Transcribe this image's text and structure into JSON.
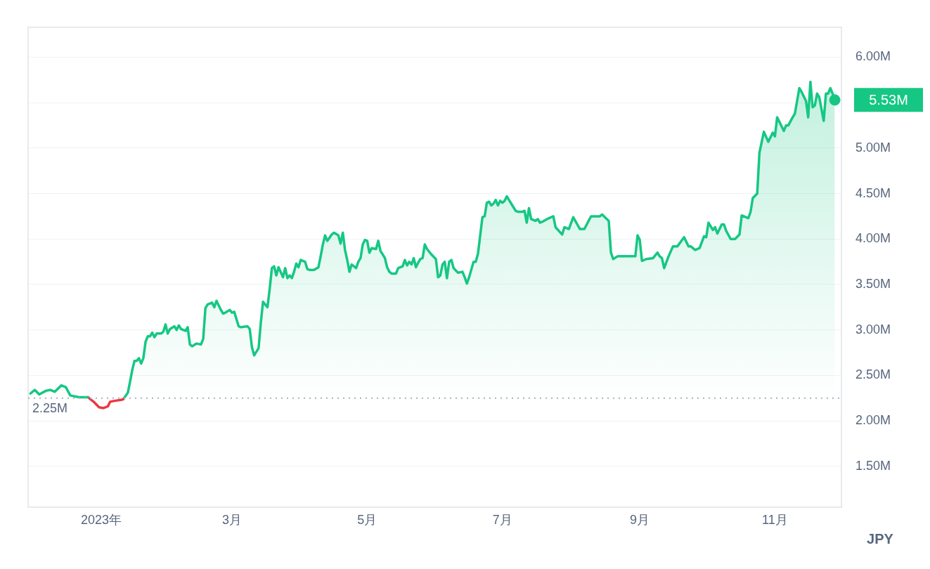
{
  "chart_data": {
    "type": "area",
    "xlim": [
      "2022-11-29",
      "2023-12-01"
    ],
    "ylim": [
      1.05,
      6.33
    ],
    "xticks": [
      {
        "value": "2023-01-01",
        "label": "2023年"
      },
      {
        "value": "2023-03-01",
        "label": "3月"
      },
      {
        "value": "2023-05-01",
        "label": "5月"
      },
      {
        "value": "2023-07-01",
        "label": "7月"
      },
      {
        "value": "2023-09-01",
        "label": "9月"
      },
      {
        "value": "2023-11-01",
        "label": "11月"
      }
    ],
    "yticks": [
      {
        "value": 1.5,
        "label": "1.50M"
      },
      {
        "value": 2,
        "label": "2.00M"
      },
      {
        "value": 2.5,
        "label": "2.50M"
      },
      {
        "value": 3,
        "label": "3.00M"
      },
      {
        "value": 3.5,
        "label": "3.50M"
      },
      {
        "value": 4,
        "label": "4.00M"
      },
      {
        "value": 4.5,
        "label": "4.50M"
      },
      {
        "value": 5,
        "label": "5.00M"
      },
      {
        "value": 5.5,
        "label": null
      },
      {
        "value": 6,
        "label": "6.00M"
      }
    ],
    "grid": "y",
    "legend": false,
    "marker": "none",
    "line_style": "solid",
    "ref_lines": [
      {
        "axis": "y",
        "value": 2.25,
        "label": "2.25M",
        "color": "#a6b0c3",
        "line_style": "dotted"
      }
    ],
    "annotations": [
      {
        "text": "5.53M",
        "x": "2023-11-28",
        "y": 5.53
      },
      "JPY"
    ],
    "series": [
      {
        "color": "#16c784",
        "x": [
          "2022-11-30",
          "2022-12-02",
          "2022-12-04",
          "2022-12-07",
          "2022-12-09",
          "2022-12-11",
          "2022-12-14",
          "2022-12-16",
          "2022-12-18",
          "2022-12-22",
          "2022-12-26"
        ],
        "values": [
          2.3,
          2.34,
          2.29,
          2.33,
          2.34,
          2.32,
          2.39,
          2.37,
          2.28,
          2.26,
          2.26
        ]
      },
      {
        "color": "#ea3943",
        "x": [
          "2022-12-26",
          "2022-12-27",
          "2022-12-29",
          "2022-12-31",
          "2023-01-02",
          "2023-01-04",
          "2023-01-05",
          "2023-01-07",
          "2023-01-10",
          "2023-01-11"
        ],
        "values": [
          2.26,
          2.24,
          2.2,
          2.15,
          2.14,
          2.16,
          2.21,
          2.22,
          2.23,
          2.24
        ]
      },
      {
        "color": "#16c784",
        "x": [
          "2023-01-11",
          "2023-01-13",
          "2023-01-14",
          "2023-01-15",
          "2023-01-16",
          "2023-01-17",
          "2023-01-18",
          "2023-01-19",
          "2023-01-20",
          "2023-01-21",
          "2023-01-22",
          "2023-01-23",
          "2023-01-24",
          "2023-01-25",
          "2023-01-26",
          "2023-01-28",
          "2023-01-29",
          "2023-01-30",
          "2023-01-31",
          "2023-02-01",
          "2023-02-03",
          "2023-02-04",
          "2023-02-05",
          "2023-02-06",
          "2023-02-08",
          "2023-02-09",
          "2023-02-10",
          "2023-02-11",
          "2023-02-13",
          "2023-02-15",
          "2023-02-16",
          "2023-02-17",
          "2023-02-18",
          "2023-02-20",
          "2023-02-21",
          "2023-02-22",
          "2023-02-23",
          "2023-02-24",
          "2023-02-25",
          "2023-02-26",
          "2023-02-28",
          "2023-03-01",
          "2023-03-02",
          "2023-03-04",
          "2023-03-05",
          "2023-03-08",
          "2023-03-09",
          "2023-03-10",
          "2023-03-11",
          "2023-03-13",
          "2023-03-14",
          "2023-03-15",
          "2023-03-17",
          "2023-03-18",
          "2023-03-19",
          "2023-03-20",
          "2023-03-21",
          "2023-03-22",
          "2023-03-24",
          "2023-03-25",
          "2023-03-26",
          "2023-03-27",
          "2023-03-28",
          "2023-03-29",
          "2023-03-30",
          "2023-03-31",
          "2023-04-01",
          "2023-04-03",
          "2023-04-04",
          "2023-04-05",
          "2023-04-07",
          "2023-04-09",
          "2023-04-10",
          "2023-04-11",
          "2023-04-12",
          "2023-04-13",
          "2023-04-15",
          "2023-04-16",
          "2023-04-18",
          "2023-04-19",
          "2023-04-20",
          "2023-04-21",
          "2023-04-22",
          "2023-04-23",
          "2023-04-24",
          "2023-04-26",
          "2023-04-27",
          "2023-04-28",
          "2023-04-29",
          "2023-04-30",
          "2023-05-01",
          "2023-05-02",
          "2023-05-03",
          "2023-05-05",
          "2023-05-06",
          "2023-05-07",
          "2023-05-09",
          "2023-05-10",
          "2023-05-11",
          "2023-05-12",
          "2023-05-14",
          "2023-05-15",
          "2023-05-17",
          "2023-05-18",
          "2023-05-19",
          "2023-05-20",
          "2023-05-21",
          "2023-05-22",
          "2023-05-23",
          "2023-05-24",
          "2023-05-25",
          "2023-05-26",
          "2023-05-27",
          "2023-05-28",
          "2023-05-30",
          "2023-06-01",
          "2023-06-02",
          "2023-06-03",
          "2023-06-04",
          "2023-06-05",
          "2023-06-06",
          "2023-06-07",
          "2023-06-08",
          "2023-06-09",
          "2023-06-11",
          "2023-06-13",
          "2023-06-14",
          "2023-06-15",
          "2023-06-16",
          "2023-06-18",
          "2023-06-19",
          "2023-06-20",
          "2023-06-22",
          "2023-06-23",
          "2023-06-24",
          "2023-06-25",
          "2023-06-26",
          "2023-06-27",
          "2023-06-28",
          "2023-06-29",
          "2023-06-30",
          "2023-07-01",
          "2023-07-02",
          "2023-07-03",
          "2023-07-04",
          "2023-07-06",
          "2023-07-07",
          "2023-07-08",
          "2023-07-10",
          "2023-07-11",
          "2023-07-12",
          "2023-07-13",
          "2023-07-14",
          "2023-07-16",
          "2023-07-17",
          "2023-07-18",
          "2023-07-19",
          "2023-07-22",
          "2023-07-24",
          "2023-07-25",
          "2023-07-28",
          "2023-07-29",
          "2023-07-31",
          "2023-08-02",
          "2023-08-05",
          "2023-08-07",
          "2023-08-10",
          "2023-08-14",
          "2023-08-15",
          "2023-08-18",
          "2023-08-19",
          "2023-08-20",
          "2023-08-22",
          "2023-08-24",
          "2023-08-28",
          "2023-08-30",
          "2023-08-31",
          "2023-09-01",
          "2023-09-02",
          "2023-09-04",
          "2023-09-07",
          "2023-09-09",
          "2023-09-10",
          "2023-09-11",
          "2023-09-12",
          "2023-09-14",
          "2023-09-16",
          "2023-09-18",
          "2023-09-21",
          "2023-09-23",
          "2023-09-24",
          "2023-09-26",
          "2023-09-28",
          "2023-09-30",
          "2023-10-01",
          "2023-10-02",
          "2023-10-04",
          "2023-10-05",
          "2023-10-06",
          "2023-10-08",
          "2023-10-09",
          "2023-10-10",
          "2023-10-12",
          "2023-10-14",
          "2023-10-16",
          "2023-10-17",
          "2023-10-20",
          "2023-10-21",
          "2023-10-22",
          "2023-10-24",
          "2023-10-25",
          "2023-10-27",
          "2023-10-29",
          "2023-10-31",
          "2023-11-01",
          "2023-11-02",
          "2023-11-05",
          "2023-11-06",
          "2023-11-07",
          "2023-11-09",
          "2023-11-10",
          "2023-11-12",
          "2023-11-13",
          "2023-11-15",
          "2023-11-16",
          "2023-11-17",
          "2023-11-18",
          "2023-11-19",
          "2023-11-20",
          "2023-11-21",
          "2023-11-23",
          "2023-11-24",
          "2023-11-25",
          "2023-11-26",
          "2023-11-27",
          "2023-11-28"
        ],
        "values": [
          2.24,
          2.31,
          2.43,
          2.56,
          2.66,
          2.66,
          2.69,
          2.63,
          2.69,
          2.87,
          2.93,
          2.93,
          2.97,
          2.92,
          2.96,
          2.96,
          2.98,
          3.06,
          2.96,
          3.01,
          3.04,
          3.0,
          3.05,
          3.01,
          2.99,
          3.03,
          2.84,
          2.82,
          2.85,
          2.84,
          2.9,
          3.24,
          3.28,
          3.3,
          3.25,
          3.32,
          3.27,
          3.22,
          3.18,
          3.19,
          3.22,
          3.19,
          3.2,
          3.04,
          3.03,
          3.04,
          3.01,
          2.81,
          2.72,
          2.8,
          3.08,
          3.31,
          3.25,
          3.45,
          3.68,
          3.7,
          3.6,
          3.69,
          3.58,
          3.68,
          3.57,
          3.6,
          3.57,
          3.64,
          3.73,
          3.69,
          3.77,
          3.75,
          3.67,
          3.66,
          3.66,
          3.69,
          3.81,
          3.94,
          4.04,
          3.98,
          4.05,
          4.07,
          4.04,
          3.95,
          4.07,
          3.88,
          3.77,
          3.64,
          3.72,
          3.68,
          3.75,
          3.79,
          3.94,
          3.99,
          3.98,
          3.85,
          3.9,
          3.89,
          3.98,
          3.87,
          3.79,
          3.69,
          3.64,
          3.62,
          3.62,
          3.68,
          3.7,
          3.77,
          3.71,
          3.75,
          3.72,
          3.79,
          3.69,
          3.74,
          3.78,
          3.79,
          3.94,
          3.89,
          3.83,
          3.78,
          3.58,
          3.6,
          3.72,
          3.75,
          3.57,
          3.75,
          3.77,
          3.68,
          3.63,
          3.64,
          3.58,
          3.51,
          3.58,
          3.75,
          3.75,
          3.84,
          4.24,
          4.25,
          4.4,
          4.41,
          4.37,
          4.39,
          4.43,
          4.37,
          4.42,
          4.4,
          4.42,
          4.47,
          4.43,
          4.35,
          4.31,
          4.3,
          4.3,
          4.31,
          4.18,
          4.34,
          4.22,
          4.2,
          4.22,
          4.18,
          4.19,
          4.23,
          4.25,
          4.13,
          4.05,
          4.13,
          4.11,
          4.24,
          4.11,
          4.11,
          4.25,
          4.25,
          4.27,
          4.2,
          3.85,
          3.78,
          3.81,
          3.81,
          3.81,
          3.81,
          4.04,
          3.99,
          3.76,
          3.78,
          3.79,
          3.85,
          3.81,
          3.79,
          3.68,
          3.81,
          3.92,
          3.92,
          4.02,
          3.92,
          3.92,
          3.88,
          3.9,
          4.03,
          4.02,
          4.18,
          4.1,
          4.13,
          4.06,
          4.16,
          4.16,
          4.09,
          4.0,
          4.0,
          4.05,
          4.26,
          4.23,
          4.3,
          4.45,
          4.5,
          4.95,
          5.18,
          5.07,
          5.17,
          5.13,
          5.34,
          5.19,
          5.25,
          5.25,
          5.34,
          5.38,
          5.66,
          5.62,
          5.52,
          5.34,
          5.73,
          5.45,
          5.47,
          5.6,
          5.56,
          5.3,
          5.6,
          5.6,
          5.66,
          5.6,
          5.53
        ]
      }
    ]
  }
}
